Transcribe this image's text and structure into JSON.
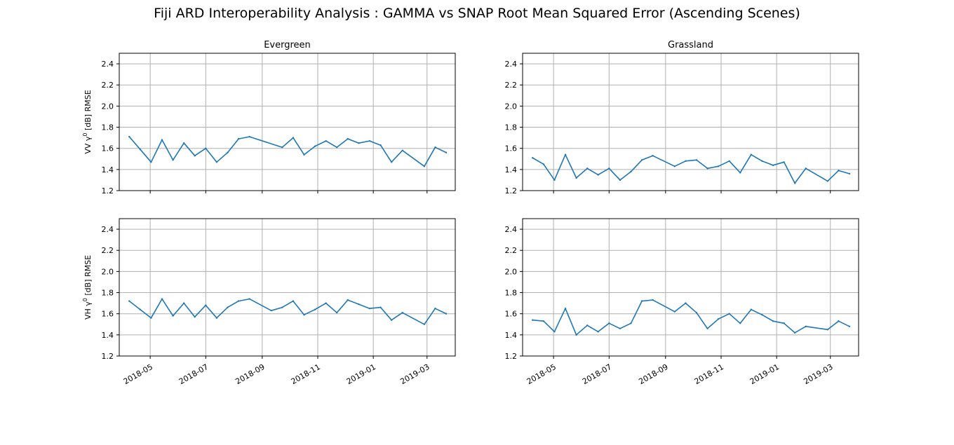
{
  "figure": {
    "title": "Fiji ARD Interoperability Analysis : GAMMA vs SNAP Root Mean Squared Error (Ascending Scenes)"
  },
  "chart_data": [
    {
      "type": "line",
      "title": "Evergreen",
      "row_label": "VV γ0 [dB] RMSE",
      "ylabel_prefix": "VV ",
      "ylabel_suffix": " [dB] RMSE",
      "ylim": [
        1.2,
        2.5
      ],
      "yticks": [
        "1.2",
        "1.4",
        "1.6",
        "1.8",
        "2.0",
        "2.2",
        "2.4"
      ],
      "grid": true,
      "x": [
        "2018-04-08",
        "2018-04-20",
        "2018-05-02",
        "2018-05-14",
        "2018-05-26",
        "2018-06-07",
        "2018-06-19",
        "2018-07-01",
        "2018-07-13",
        "2018-07-25",
        "2018-08-06",
        "2018-08-18",
        "2018-09-23",
        "2018-10-05",
        "2018-10-17",
        "2018-10-29",
        "2018-11-10",
        "2018-11-22",
        "2018-12-04",
        "2018-12-16",
        "2018-12-28",
        "2019-01-09",
        "2019-01-21",
        "2019-02-02",
        "2019-02-26",
        "2019-03-10",
        "2019-03-22"
      ],
      "values": [
        1.71,
        1.59,
        1.47,
        1.68,
        1.49,
        1.65,
        1.53,
        1.6,
        1.47,
        1.56,
        1.69,
        1.71,
        1.61,
        1.7,
        1.54,
        1.62,
        1.67,
        1.61,
        1.69,
        1.65,
        1.67,
        1.63,
        1.47,
        1.58,
        1.43,
        1.61,
        1.56
      ],
      "color": "#1f77b4"
    },
    {
      "type": "line",
      "title": "Grassland",
      "ylim": [
        1.2,
        2.5
      ],
      "yticks": [
        "1.2",
        "1.4",
        "1.6",
        "1.8",
        "2.0",
        "2.2",
        "2.4"
      ],
      "grid": true,
      "x": [
        "2018-04-08",
        "2018-04-20",
        "2018-05-02",
        "2018-05-14",
        "2018-05-26",
        "2018-06-07",
        "2018-06-19",
        "2018-07-01",
        "2018-07-13",
        "2018-07-25",
        "2018-08-06",
        "2018-08-18",
        "2018-09-11",
        "2018-09-23",
        "2018-10-05",
        "2018-10-17",
        "2018-10-29",
        "2018-11-10",
        "2018-11-22",
        "2018-12-04",
        "2018-12-16",
        "2018-12-28",
        "2019-01-09",
        "2019-01-21",
        "2019-02-02",
        "2019-02-26",
        "2019-03-10",
        "2019-03-22"
      ],
      "values": [
        1.51,
        1.45,
        1.3,
        1.54,
        1.32,
        1.41,
        1.35,
        1.41,
        1.3,
        1.38,
        1.49,
        1.53,
        1.43,
        1.48,
        1.49,
        1.41,
        1.43,
        1.48,
        1.37,
        1.54,
        1.48,
        1.44,
        1.47,
        1.27,
        1.41,
        1.29,
        1.39,
        1.36
      ],
      "color": "#1f77b4"
    },
    {
      "type": "line",
      "row_label": "VH γ0 [dB] RMSE",
      "ylabel_prefix": "VH ",
      "ylabel_suffix": " [dB] RMSE",
      "ylim": [
        1.2,
        2.5
      ],
      "yticks": [
        "1.2",
        "1.4",
        "1.6",
        "1.8",
        "2.0",
        "2.2",
        "2.4"
      ],
      "grid": true,
      "x": [
        "2018-04-08",
        "2018-04-20",
        "2018-05-02",
        "2018-05-14",
        "2018-05-26",
        "2018-06-07",
        "2018-06-19",
        "2018-07-01",
        "2018-07-13",
        "2018-07-25",
        "2018-08-06",
        "2018-08-18",
        "2018-09-11",
        "2018-09-23",
        "2018-10-05",
        "2018-10-17",
        "2018-10-29",
        "2018-11-10",
        "2018-11-22",
        "2018-12-04",
        "2018-12-16",
        "2018-12-28",
        "2019-01-09",
        "2019-01-21",
        "2019-02-02",
        "2019-02-26",
        "2019-03-10",
        "2019-03-22"
      ],
      "values": [
        1.72,
        1.64,
        1.56,
        1.74,
        1.58,
        1.7,
        1.57,
        1.68,
        1.56,
        1.66,
        1.72,
        1.74,
        1.63,
        1.66,
        1.72,
        1.59,
        1.64,
        1.7,
        1.61,
        1.73,
        1.69,
        1.65,
        1.66,
        1.54,
        1.61,
        1.5,
        1.65,
        1.6
      ],
      "color": "#1f77b4"
    },
    {
      "type": "line",
      "ylim": [
        1.2,
        2.5
      ],
      "yticks": [
        "1.2",
        "1.4",
        "1.6",
        "1.8",
        "2.0",
        "2.2",
        "2.4"
      ],
      "grid": true,
      "x": [
        "2018-04-08",
        "2018-04-20",
        "2018-05-02",
        "2018-05-14",
        "2018-05-26",
        "2018-06-07",
        "2018-06-19",
        "2018-07-01",
        "2018-07-13",
        "2018-07-25",
        "2018-08-06",
        "2018-08-18",
        "2018-09-11",
        "2018-09-23",
        "2018-10-05",
        "2018-10-17",
        "2018-10-29",
        "2018-11-10",
        "2018-11-22",
        "2018-12-04",
        "2018-12-16",
        "2018-12-28",
        "2019-01-09",
        "2019-01-21",
        "2019-02-02",
        "2019-02-26",
        "2019-03-10",
        "2019-03-22"
      ],
      "values": [
        1.54,
        1.53,
        1.43,
        1.65,
        1.4,
        1.49,
        1.43,
        1.51,
        1.46,
        1.51,
        1.72,
        1.73,
        1.62,
        1.7,
        1.61,
        1.46,
        1.55,
        1.6,
        1.51,
        1.64,
        1.59,
        1.53,
        1.51,
        1.42,
        1.48,
        1.45,
        1.53,
        1.48
      ],
      "color": "#1f77b4"
    }
  ],
  "x_axis": {
    "xlim": [
      "2018-03-28",
      "2019-04-01"
    ],
    "ticks": [
      "2018-05",
      "2018-07",
      "2018-09",
      "2018-11",
      "2019-01",
      "2019-03"
    ]
  }
}
